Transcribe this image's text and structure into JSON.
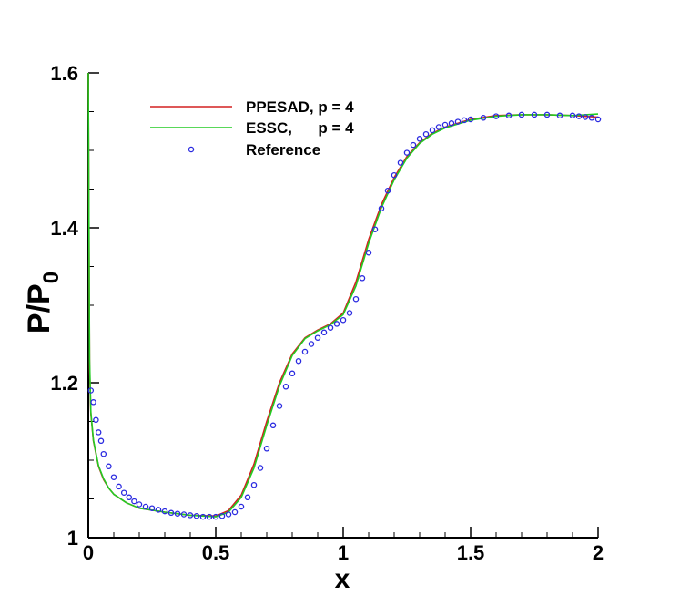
{
  "chart_data": {
    "type": "line",
    "xlabel": "x",
    "ylabel": {
      "base": "P/P",
      "subscript": "0"
    },
    "xlim": [
      0,
      2
    ],
    "ylim": [
      1,
      1.6
    ],
    "xticks": [
      0,
      0.5,
      1,
      1.5,
      2
    ],
    "xtick_labels": [
      "0",
      "0.5",
      "1",
      "1.5",
      "2"
    ],
    "yticks": [
      1,
      1.2,
      1.4,
      1.6
    ],
    "ytick_labels": [
      "1",
      "1.2",
      "1.4",
      "1.6"
    ],
    "grid": false,
    "legend_position": "top-left",
    "colors": {
      "ppesad": "#d42020",
      "essc": "#22cc22",
      "reference": "#2a2ae0"
    },
    "series": [
      {
        "name": "PPESAD, p = 4",
        "kind": "line",
        "x": [
          0,
          0.005,
          0.01,
          0.02,
          0.04,
          0.06,
          0.08,
          0.1,
          0.15,
          0.2,
          0.3,
          0.4,
          0.5,
          0.55,
          0.6,
          0.65,
          0.7,
          0.75,
          0.8,
          0.85,
          0.9,
          0.95,
          1.0,
          1.05,
          1.1,
          1.15,
          1.2,
          1.25,
          1.3,
          1.35,
          1.4,
          1.5,
          1.6,
          1.7,
          1.8,
          1.9,
          2.0
        ],
        "y": [
          1.6,
          1.22,
          1.16,
          1.125,
          1.092,
          1.075,
          1.064,
          1.056,
          1.045,
          1.038,
          1.033,
          1.029,
          1.028,
          1.035,
          1.055,
          1.095,
          1.15,
          1.2,
          1.237,
          1.258,
          1.268,
          1.276,
          1.29,
          1.33,
          1.385,
          1.43,
          1.465,
          1.492,
          1.51,
          1.522,
          1.53,
          1.54,
          1.545,
          1.546,
          1.546,
          1.545,
          1.543
        ]
      },
      {
        "name": "ESSC,      p = 4",
        "kind": "line",
        "x": [
          0,
          0.005,
          0.01,
          0.02,
          0.04,
          0.06,
          0.08,
          0.1,
          0.15,
          0.2,
          0.3,
          0.4,
          0.5,
          0.55,
          0.6,
          0.65,
          0.7,
          0.75,
          0.8,
          0.85,
          0.9,
          0.95,
          1.0,
          1.05,
          1.1,
          1.15,
          1.2,
          1.25,
          1.3,
          1.35,
          1.4,
          1.5,
          1.6,
          1.7,
          1.8,
          1.9,
          2.0
        ],
        "y": [
          1.6,
          1.23,
          1.162,
          1.126,
          1.093,
          1.076,
          1.064,
          1.056,
          1.045,
          1.038,
          1.033,
          1.029,
          1.027,
          1.033,
          1.052,
          1.09,
          1.145,
          1.196,
          1.235,
          1.257,
          1.267,
          1.275,
          1.288,
          1.325,
          1.38,
          1.426,
          1.462,
          1.49,
          1.509,
          1.521,
          1.529,
          1.539,
          1.544,
          1.546,
          1.546,
          1.545,
          1.547
        ]
      },
      {
        "name": "Reference",
        "kind": "scatter",
        "x": [
          0.01,
          0.02,
          0.03,
          0.04,
          0.05,
          0.06,
          0.08,
          0.1,
          0.12,
          0.14,
          0.16,
          0.18,
          0.2,
          0.225,
          0.25,
          0.275,
          0.3,
          0.325,
          0.35,
          0.375,
          0.4,
          0.425,
          0.45,
          0.475,
          0.5,
          0.525,
          0.55,
          0.575,
          0.6,
          0.625,
          0.65,
          0.675,
          0.7,
          0.725,
          0.75,
          0.775,
          0.8,
          0.825,
          0.85,
          0.875,
          0.9,
          0.925,
          0.95,
          0.975,
          1.0,
          1.025,
          1.05,
          1.075,
          1.1,
          1.125,
          1.15,
          1.175,
          1.2,
          1.225,
          1.25,
          1.275,
          1.3,
          1.325,
          1.35,
          1.375,
          1.4,
          1.425,
          1.45,
          1.475,
          1.5,
          1.55,
          1.6,
          1.65,
          1.7,
          1.75,
          1.8,
          1.85,
          1.9,
          1.925,
          1.95,
          1.975,
          2.0
        ],
        "y": [
          1.19,
          1.175,
          1.152,
          1.136,
          1.125,
          1.108,
          1.092,
          1.078,
          1.066,
          1.058,
          1.052,
          1.047,
          1.043,
          1.04,
          1.038,
          1.036,
          1.034,
          1.032,
          1.031,
          1.03,
          1.029,
          1.028,
          1.027,
          1.027,
          1.027,
          1.028,
          1.03,
          1.033,
          1.04,
          1.052,
          1.068,
          1.09,
          1.115,
          1.145,
          1.17,
          1.195,
          1.212,
          1.228,
          1.24,
          1.25,
          1.258,
          1.265,
          1.271,
          1.276,
          1.281,
          1.29,
          1.308,
          1.335,
          1.368,
          1.398,
          1.425,
          1.448,
          1.468,
          1.484,
          1.497,
          1.507,
          1.515,
          1.521,
          1.526,
          1.53,
          1.533,
          1.535,
          1.537,
          1.539,
          1.54,
          1.542,
          1.544,
          1.545,
          1.546,
          1.546,
          1.546,
          1.545,
          1.545,
          1.544,
          1.543,
          1.542,
          1.54
        ]
      }
    ]
  }
}
